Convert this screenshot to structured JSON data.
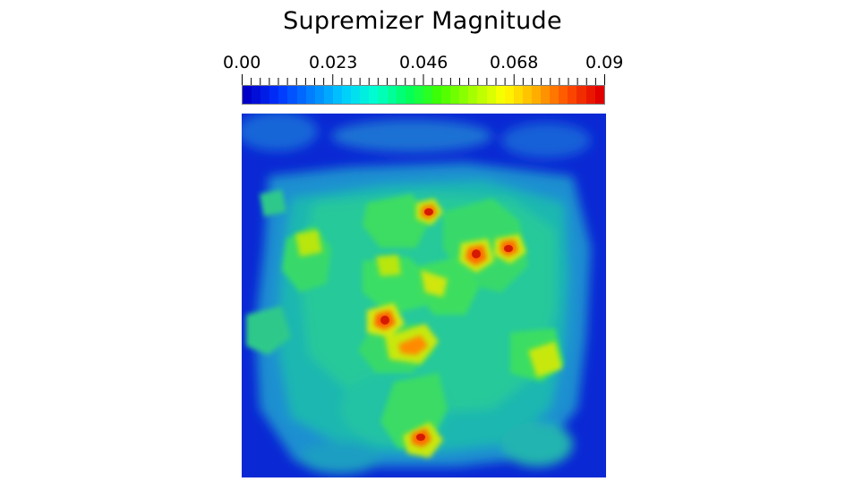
{
  "title": "Supremizer Magnitude",
  "legend": {
    "tick_labels": [
      "0.00",
      "0.023",
      "0.046",
      "0.068",
      "0.09"
    ],
    "range": [
      0.0,
      0.09
    ],
    "colormap": [
      "#0000c8",
      "#0033ff",
      "#0080ff",
      "#00ccff",
      "#00ffd0",
      "#00ff60",
      "#40ff00",
      "#a0ff00",
      "#ffff00",
      "#ffb000",
      "#ff5000",
      "#e00000"
    ]
  },
  "colors": {
    "background": "#ffffff",
    "field_base": "#0a2fd8",
    "field_mid": "#1db5a8",
    "field_high": "#32d96a",
    "hot": "#e01e00"
  }
}
